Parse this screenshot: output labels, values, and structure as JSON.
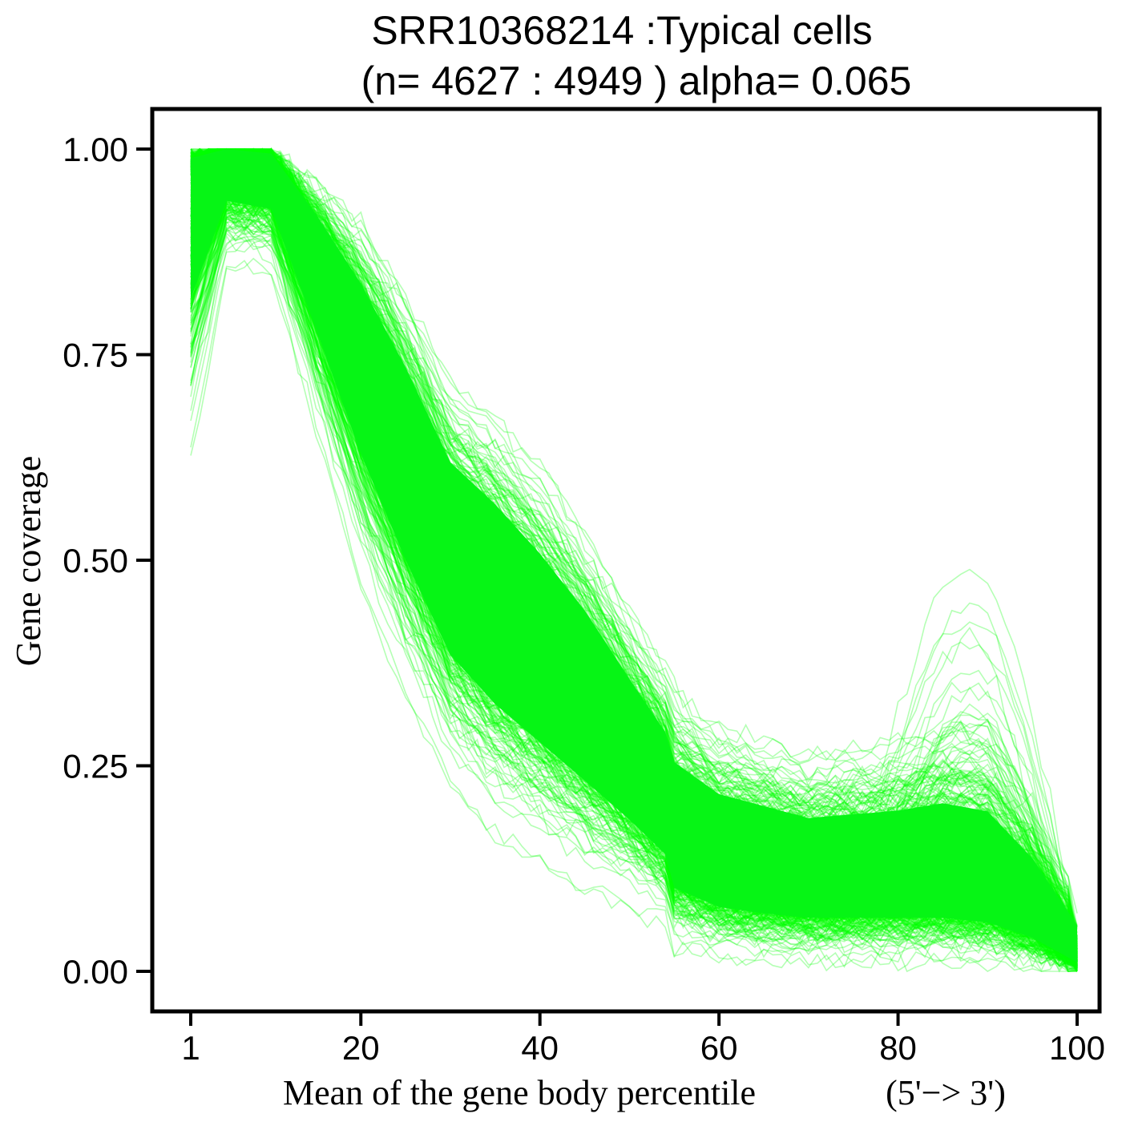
{
  "chart_data": {
    "type": "line",
    "title_line1": "SRR10368214 :Typical cells",
    "title_line2": "(n= 4627 : 4949 ) alpha= 0.065",
    "xlabel": "Mean of the gene body percentile",
    "xlabel_suffix": "(5'−> 3')",
    "ylabel": "Gene coverage",
    "xlim": [
      1,
      100
    ],
    "ylim": [
      0,
      1
    ],
    "x_ticks": [
      1,
      20,
      40,
      60,
      80,
      100
    ],
    "x_tick_labels": [
      "1",
      "20",
      "40",
      "60",
      "80",
      "100"
    ],
    "y_ticks": [
      0,
      0.25,
      0.5,
      0.75,
      1.0
    ],
    "y_tick_labels": [
      "0.00",
      "0.25",
      "0.50",
      "0.75",
      "1.00"
    ],
    "line_color": "#00ff00",
    "alpha": 0.065,
    "n_lines_plotted": 4627,
    "n_total": 4949,
    "summary_profile": {
      "x": [
        1,
        5,
        10,
        15,
        20,
        25,
        30,
        35,
        40,
        45,
        50,
        54,
        55,
        60,
        65,
        70,
        75,
        80,
        85,
        90,
        95,
        100
      ],
      "upper": [
        1.0,
        1.0,
        1.0,
        0.97,
        0.93,
        0.85,
        0.74,
        0.7,
        0.64,
        0.56,
        0.46,
        0.39,
        0.37,
        0.32,
        0.3,
        0.28,
        0.29,
        0.3,
        0.32,
        0.31,
        0.22,
        0.1
      ],
      "median": [
        0.98,
        1.0,
        0.99,
        0.88,
        0.76,
        0.64,
        0.52,
        0.46,
        0.4,
        0.34,
        0.27,
        0.21,
        0.16,
        0.13,
        0.12,
        0.11,
        0.11,
        0.11,
        0.11,
        0.1,
        0.07,
        0.02
      ],
      "lower": [
        0.62,
        0.86,
        0.85,
        0.66,
        0.47,
        0.33,
        0.22,
        0.16,
        0.13,
        0.1,
        0.08,
        0.06,
        0.03,
        0.015,
        0.01,
        0.01,
        0.01,
        0.01,
        0.01,
        0.01,
        0.005,
        0.0
      ]
    }
  }
}
